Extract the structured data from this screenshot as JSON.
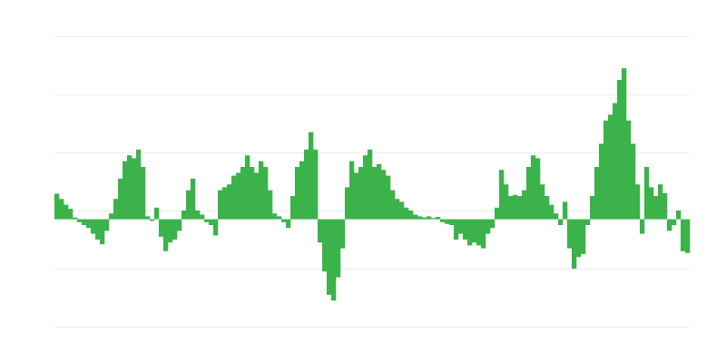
{
  "chart_data": {
    "type": "bar",
    "values": [
      4.4,
      3.5,
      2.5,
      1.8,
      0.3,
      -0.5,
      -1,
      -1.5,
      -2.5,
      -3.5,
      -4.3,
      -2,
      1,
      3.5,
      7,
      10,
      11,
      10.5,
      12,
      9,
      0.5,
      -0.3,
      2,
      -3,
      -5.5,
      -4,
      -3.5,
      -2,
      1.5,
      5,
      7,
      1.5,
      0.8,
      -0.5,
      -1,
      -2.8,
      5,
      5.5,
      6,
      7.5,
      8,
      9,
      11,
      9,
      8,
      10,
      9,
      5,
      1,
      0.5,
      -0.5,
      -1.5,
      4,
      9,
      10,
      12,
      15,
      12,
      -4,
      -9,
      -13,
      -14,
      -10,
      -5,
      5.5,
      10,
      8,
      9,
      11,
      12,
      9,
      9.5,
      8.5,
      7.5,
      5,
      3.5,
      3,
      2,
      1.5,
      0.8,
      0.5,
      0.3,
      0.5,
      0.2,
      0.4,
      -0.5,
      -0.8,
      -1,
      -3.5,
      -2.5,
      -3.5,
      -4.5,
      -4,
      -4.5,
      -5,
      -2.5,
      -1.5,
      2,
      8.5,
      6,
      4,
      4.2,
      4,
      5,
      9,
      11,
      10.5,
      6,
      4,
      2.5,
      1,
      -1,
      3,
      -5,
      -8.5,
      -6.5,
      -6,
      -1,
      4,
      9,
      13,
      17,
      18,
      20,
      24,
      26,
      17,
      13,
      6,
      -2.5,
      9,
      5.5,
      4,
      6,
      4.5,
      -2,
      -1,
      1.5,
      -5.5,
      -5.8
    ],
    "color": "#3bb34a",
    "ylim": [
      -18.5,
      31.5
    ],
    "yticks": [
      -18.5,
      -8.5,
      1.5,
      11.5,
      21.5,
      31.5
    ],
    "grid": true
  }
}
